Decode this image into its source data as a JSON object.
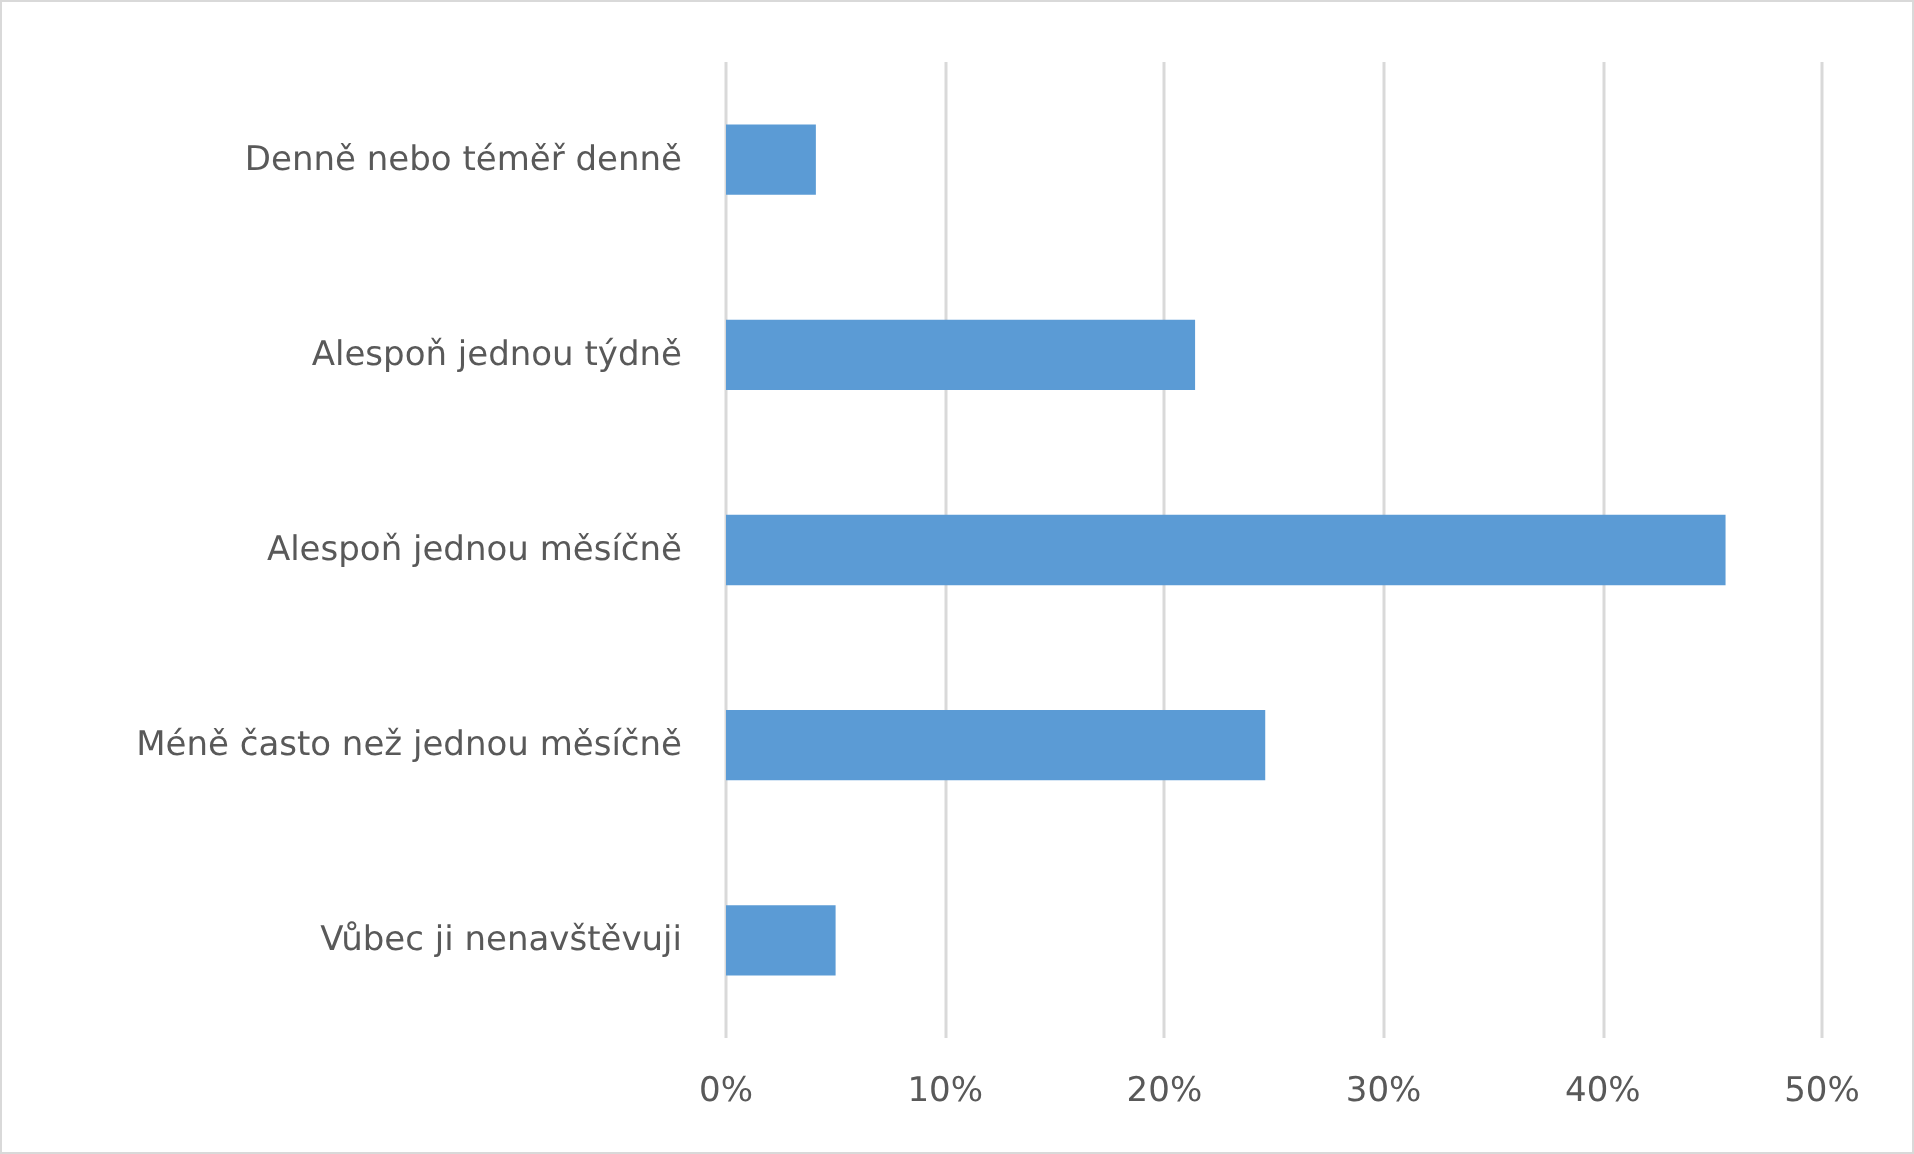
{
  "chart_data": {
    "type": "bar",
    "orientation": "horizontal",
    "categories": [
      "Denně nebo téměř denně",
      "Alespoň jednou týdně",
      "Alespoň jednou měsíčně",
      "Méně často než jednou měsíčně",
      "Vůbec ji nenavštěvuji"
    ],
    "values": [
      4.1,
      21.4,
      45.6,
      24.6,
      5.0
    ],
    "color": "#5b9bd5",
    "xlim": [
      0,
      50
    ],
    "xticks": [
      {
        "value": 0,
        "label": "0%"
      },
      {
        "value": 10,
        "label": "10%"
      },
      {
        "value": 20,
        "label": "20%"
      },
      {
        "value": 30,
        "label": "30%"
      },
      {
        "value": 40,
        "label": "40%"
      },
      {
        "value": 50,
        "label": "50%"
      }
    ],
    "grid": "x"
  }
}
